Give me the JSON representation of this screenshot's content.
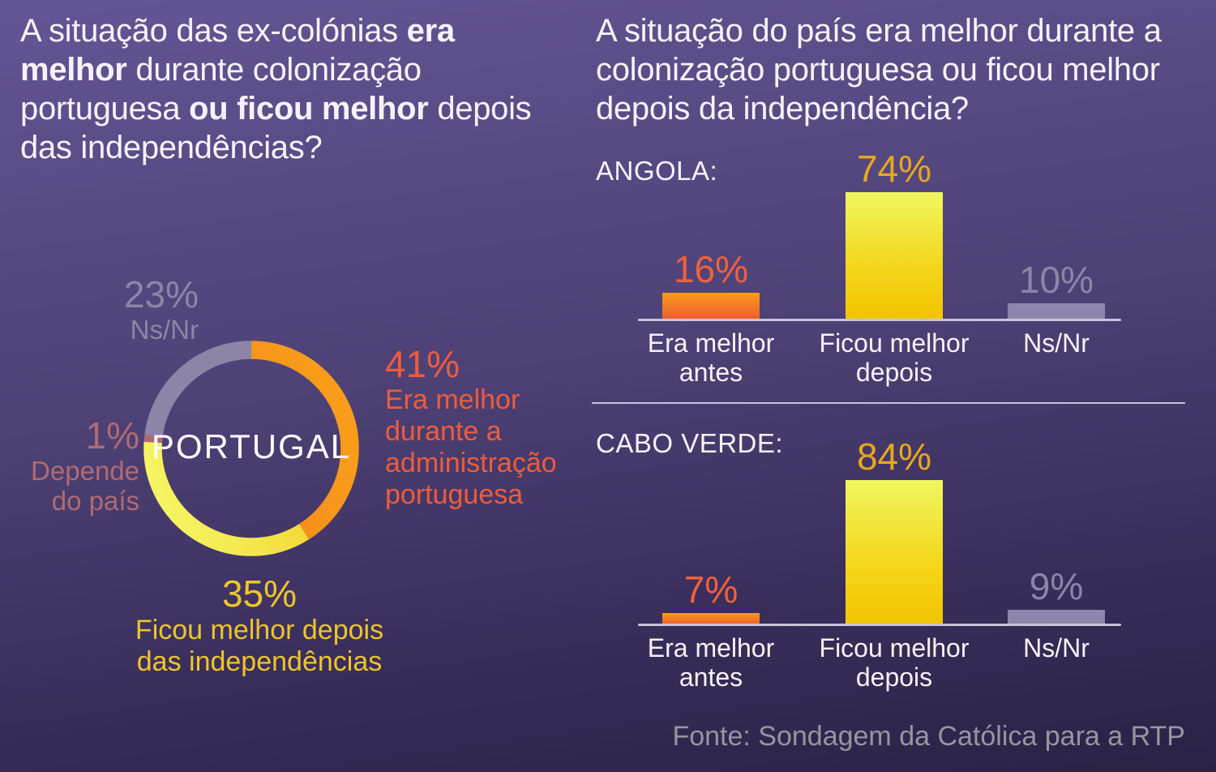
{
  "left": {
    "question_segments": [
      {
        "text": "A situação das ex-colónias ",
        "bold": false
      },
      {
        "text": "era melhor",
        "bold": true
      },
      {
        "text": " durante colonização portuguesa ",
        "bold": false
      },
      {
        "text": "ou ficou melhor",
        "bold": true
      },
      {
        "text": " depois das independências?",
        "bold": false
      }
    ],
    "donut": {
      "center_label": "PORTUGAL",
      "slices": [
        {
          "value": 41,
          "value_label": "41%",
          "lines": [
            "Era melhor",
            "durante a",
            "administração",
            "portuguesa"
          ],
          "color": "#ee5c3c"
        },
        {
          "value": 35,
          "value_label": "35%",
          "lines": [
            "Ficou melhor depois",
            "das independências"
          ],
          "color": "#edc52b"
        },
        {
          "value": 1,
          "value_label": "1%",
          "lines": [
            "Depende",
            "do país"
          ],
          "color": "#b16b72"
        },
        {
          "value": 23,
          "value_label": "23%",
          "lines": [
            "Ns/Nr"
          ],
          "color": "#8d84a8"
        }
      ]
    }
  },
  "right": {
    "question": "A situação do país era melhor durante a colonização portuguesa ou ficou melhor depois da independência?",
    "charts": [
      {
        "country_label": "ANGOLA:",
        "bars": [
          {
            "value": 16,
            "value_label": "16%",
            "lines": [
              "Era melhor",
              "antes"
            ]
          },
          {
            "value": 74,
            "value_label": "74%",
            "lines": [
              "Ficou melhor",
              "depois"
            ]
          },
          {
            "value": 10,
            "value_label": "10%",
            "lines": [
              "Ns/Nr"
            ]
          }
        ]
      },
      {
        "country_label": "CABO VERDE:",
        "bars": [
          {
            "value": 7,
            "value_label": "7%",
            "lines": [
              "Era melhor",
              "antes"
            ]
          },
          {
            "value": 84,
            "value_label": "84%",
            "lines": [
              "Ficou melhor",
              "depois"
            ]
          },
          {
            "value": 9,
            "value_label": "9%",
            "lines": [
              "Ns/Nr"
            ]
          }
        ]
      }
    ],
    "source": "Fonte: Sondagem da Católica para a RTP"
  },
  "colors": {
    "background_top": "#645595",
    "background_bottom": "#2b2144",
    "orange_start": "#e95b22",
    "orange_end": "#f89c1a",
    "yellow_start": "#f5f868",
    "yellow_end": "#f1c306",
    "gray": "#8d84a8",
    "pink": "#b06a6e",
    "text_white": "#f5f3f9",
    "gold_label": "#e8a61e",
    "orange_label": "#f0613b",
    "source_text": "#9a93a2"
  },
  "chart_data": [
    {
      "type": "pie",
      "subtype": "donut",
      "title": "PORTUGAL",
      "question": "A situação das ex-colónias era melhor durante colonização portuguesa ou ficou melhor depois das independências?",
      "labels": [
        "Era melhor durante a administração portuguesa",
        "Ficou melhor depois das independências",
        "Depende do país",
        "Ns/Nr"
      ],
      "values": [
        41,
        35,
        1,
        23
      ],
      "colors": [
        "#f7941d",
        "#f2c400",
        "#b06a6e",
        "#8d84a8"
      ],
      "start_angle": "top",
      "direction": "clockwise"
    },
    {
      "type": "bar",
      "title": "ANGOLA",
      "categories": [
        "Era melhor antes",
        "Ficou melhor depois",
        "Ns/Nr"
      ],
      "values": [
        16,
        74,
        10
      ],
      "colors": [
        "#f3702a",
        "#f2c400",
        "#8f86ab"
      ],
      "ylim": [
        0,
        100
      ],
      "grid": false,
      "data_labels": [
        "16%",
        "74%",
        "10%"
      ]
    },
    {
      "type": "bar",
      "title": "CABO VERDE",
      "categories": [
        "Era melhor antes",
        "Ficou melhor depois",
        "Ns/Nr"
      ],
      "values": [
        7,
        84,
        9
      ],
      "colors": [
        "#f3702a",
        "#f2c400",
        "#8f86ab"
      ],
      "ylim": [
        0,
        100
      ],
      "grid": false,
      "data_labels": [
        "7%",
        "84%",
        "9%"
      ]
    }
  ]
}
